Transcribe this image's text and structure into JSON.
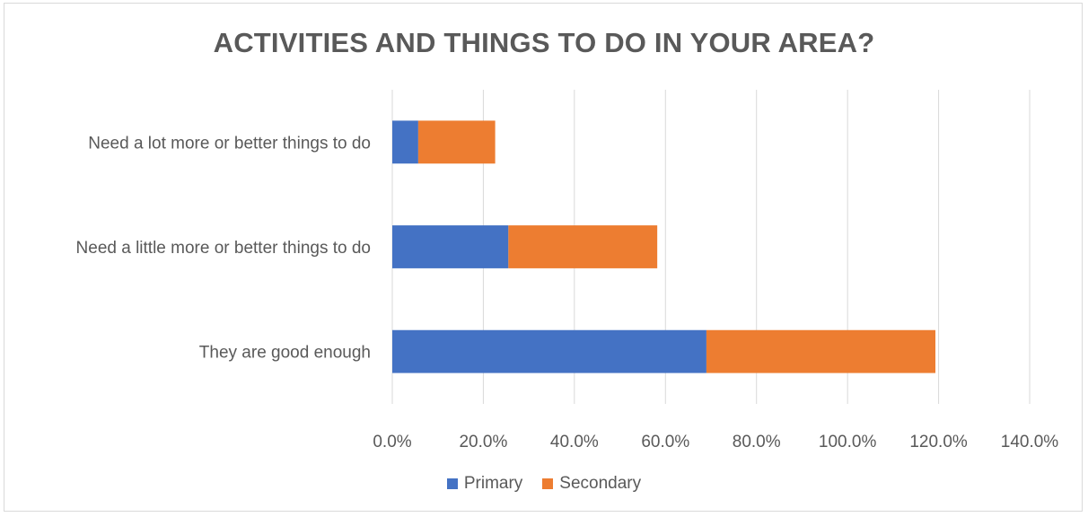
{
  "chart_data": {
    "type": "bar",
    "orientation": "horizontal",
    "stacked": true,
    "title": "ACTIVITIES AND THINGS TO DO IN YOUR AREA?",
    "categories": [
      "Need a lot more or better things to do",
      "Need a little more or better things to do",
      "They are good enough"
    ],
    "series": [
      {
        "name": "Primary",
        "color": "#4472c4",
        "values": [
          5.7,
          25.5,
          69.0
        ]
      },
      {
        "name": "Secondary",
        "color": "#ed7d31",
        "values": [
          16.9,
          32.7,
          50.3
        ]
      }
    ],
    "xlim": [
      0,
      140
    ],
    "xticks": [
      "0.0%",
      "20.0%",
      "40.0%",
      "60.0%",
      "80.0%",
      "100.0%",
      "120.0%",
      "140.0%"
    ],
    "grid": true,
    "legend": "bottom"
  }
}
